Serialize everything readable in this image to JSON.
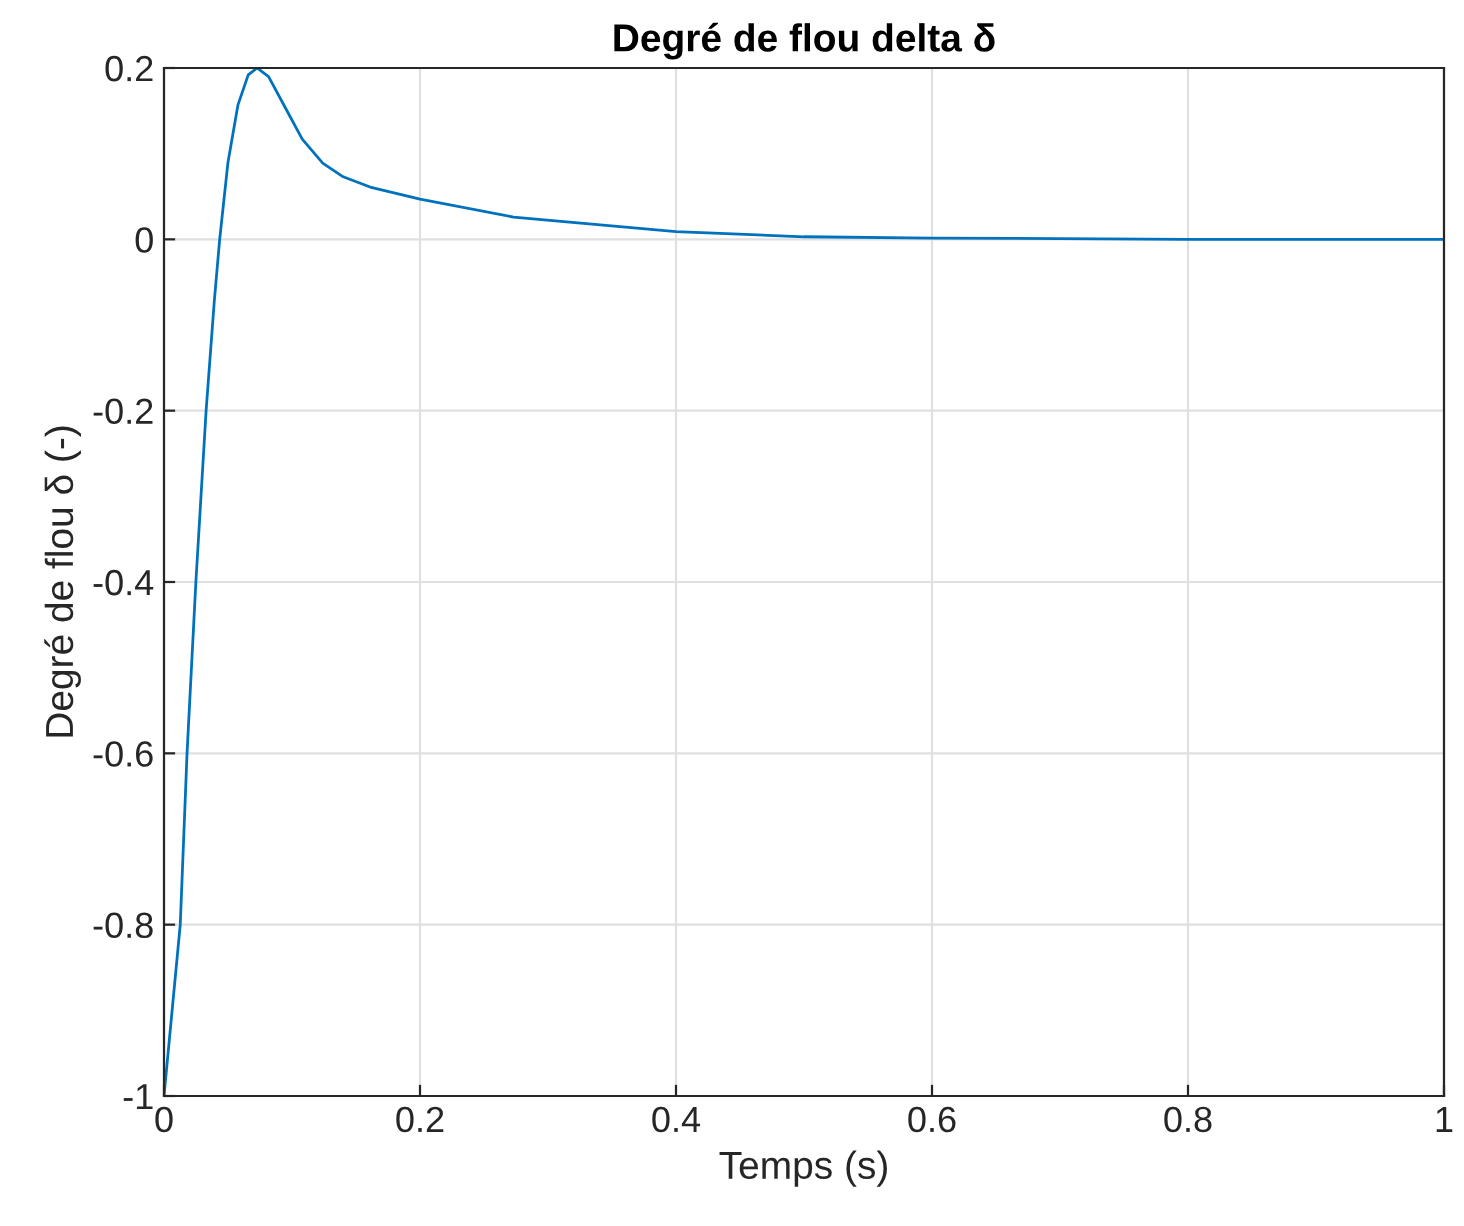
{
  "chart_data": {
    "type": "line",
    "title": "Degré de flou delta δ",
    "xlabel": "Temps (s)",
    "ylabel": "Degré de flou δ (-)",
    "series": [
      {
        "color": "#0072bd",
        "x": [
          0,
          0.0127,
          0.018,
          0.0249,
          0.0329,
          0.0393,
          0.0435,
          0.0499,
          0.0578,
          0.0658,
          0.0727,
          0.0817,
          0.095,
          0.108,
          0.124,
          0.14,
          0.161,
          0.2,
          0.273,
          0.4,
          0.5,
          0.6,
          0.8,
          1.0
        ],
        "values": [
          -1,
          -0.8,
          -0.6,
          -0.4,
          -0.2,
          -0.072,
          0.0,
          0.089,
          0.157,
          0.192,
          0.2,
          0.19,
          0.153,
          0.117,
          0.089,
          0.073,
          0.061,
          0.047,
          0.026,
          0.009,
          0.003,
          0.0015,
          0.0,
          0.0
        ]
      }
    ],
    "xlim": [
      0,
      1
    ],
    "ylim": [
      -1,
      0.2
    ],
    "xticks": [
      0,
      0.2,
      0.4,
      0.6,
      0.8,
      1
    ],
    "yticks": [
      -1,
      -0.8,
      -0.6,
      -0.4,
      -0.2,
      0,
      0.2
    ],
    "grid": true,
    "marker": "none",
    "line_style": "solid"
  }
}
